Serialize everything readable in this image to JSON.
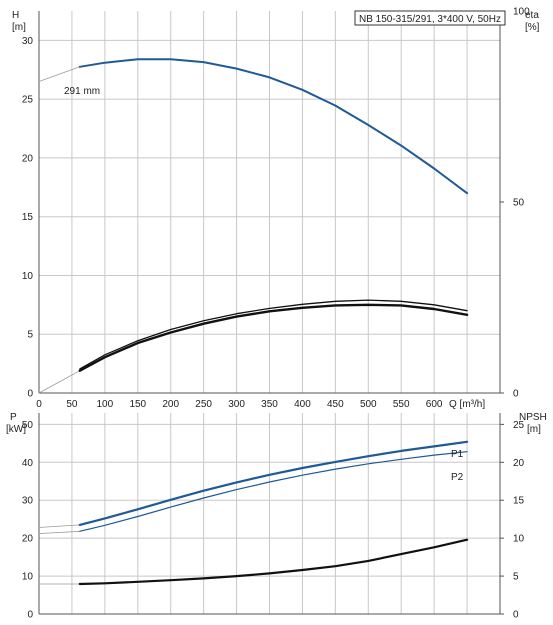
{
  "chart_data": {
    "type": "line",
    "title": "NB 150-315/291, 3*400 V, 50Hz",
    "diameter_label": "291 mm",
    "colors": {
      "blue": "#1f5a96",
      "black": "#111111",
      "gray": "#9a9a9a",
      "grid": "#c8c8c8"
    },
    "x": {
      "label": "Q [m³/h]",
      "range": [
        0,
        700
      ],
      "ticks": [
        0,
        50,
        100,
        150,
        200,
        250,
        300,
        350,
        400,
        450,
        500,
        550,
        600,
        650
      ],
      "tick_labels": [
        "0",
        "50",
        "100",
        "150",
        "200",
        "250",
        "300",
        "350",
        "400",
        "450",
        "500",
        "550",
        "600",
        "Q [m³/h]"
      ]
    },
    "top_panel": {
      "left_axis": {
        "label_line1": "H",
        "label_line2": "[m]",
        "range": [
          0,
          32.5
        ],
        "ticks": [
          0,
          5,
          10,
          15,
          20,
          25,
          30
        ]
      },
      "right_axis": {
        "label_line1": "eta",
        "label_line2": "[%]",
        "range": [
          0,
          100
        ],
        "ticks": [
          0,
          50,
          100
        ]
      },
      "head_curve": {
        "name": "H",
        "x": [
          62,
          100,
          150,
          200,
          250,
          300,
          350,
          400,
          450,
          500,
          550,
          600,
          650
        ],
        "y": [
          27.75,
          28.1,
          28.4,
          28.4,
          28.15,
          27.6,
          26.85,
          25.8,
          24.45,
          22.8,
          21.05,
          19.1,
          17.0
        ],
        "extrapolation_x": [
          0,
          62
        ],
        "extrapolation_y": [
          26.5,
          27.75
        ]
      },
      "eta_curves": [
        {
          "x": [
            62,
            100,
            150,
            200,
            250,
            300,
            350,
            400,
            450,
            500,
            550,
            600,
            650
          ],
          "y": [
            2.05,
            3.25,
            4.45,
            5.4,
            6.15,
            6.75,
            7.2,
            7.55,
            7.8,
            7.9,
            7.8,
            7.5,
            7.0
          ]
        },
        {
          "x": [
            62,
            100,
            150,
            200,
            250,
            300,
            350,
            400,
            450,
            500,
            550,
            600,
            650
          ],
          "y": [
            1.9,
            3.05,
            4.25,
            5.15,
            5.9,
            6.5,
            6.95,
            7.25,
            7.45,
            7.5,
            7.45,
            7.15,
            6.65
          ]
        }
      ],
      "eta_extrapolation_x": [
        0,
        62
      ],
      "eta_extrapolation_y": [
        0,
        1.9
      ]
    },
    "bottom_panel": {
      "left_axis": {
        "label_line1": "P",
        "label_line2": "[kW]",
        "range": [
          0,
          53
        ],
        "ticks": [
          0,
          10,
          20,
          30,
          40,
          50
        ]
      },
      "right_axis": {
        "label_line1": "NPSH",
        "label_line2": "[m]",
        "range": [
          0,
          26.5
        ],
        "ticks": [
          0,
          5,
          10,
          15,
          20,
          25
        ]
      },
      "power_curves": [
        {
          "name": "P1",
          "x": [
            62,
            100,
            150,
            200,
            250,
            300,
            350,
            400,
            450,
            500,
            550,
            600,
            650
          ],
          "y": [
            23.5,
            25.2,
            27.6,
            30.1,
            32.5,
            34.7,
            36.7,
            38.5,
            40.1,
            41.6,
            43.0,
            44.2,
            45.4
          ]
        },
        {
          "name": "P2",
          "x": [
            62,
            100,
            150,
            200,
            250,
            300,
            350,
            400,
            450,
            500,
            550,
            600,
            650
          ],
          "y": [
            21.8,
            23.4,
            25.7,
            28.2,
            30.6,
            32.8,
            34.8,
            36.6,
            38.2,
            39.6,
            40.8,
            41.9,
            42.8
          ]
        }
      ],
      "power_extrapolation": [
        {
          "x": [
            0,
            62
          ],
          "y": [
            22.8,
            23.5
          ]
        },
        {
          "x": [
            0,
            62
          ],
          "y": [
            21.2,
            21.8
          ]
        }
      ],
      "npsh_curve": {
        "name": "NPSH",
        "x": [
          62,
          100,
          150,
          200,
          250,
          300,
          350,
          400,
          450,
          500,
          550,
          600,
          650
        ],
        "y": [
          3.95,
          4.05,
          4.25,
          4.45,
          4.7,
          5.0,
          5.35,
          5.8,
          6.3,
          7.0,
          7.9,
          8.8,
          9.8
        ]
      },
      "npsh_extrapolation_x": [
        0,
        62
      ],
      "npsh_extrapolation_y": [
        3.95,
        3.95
      ]
    }
  }
}
